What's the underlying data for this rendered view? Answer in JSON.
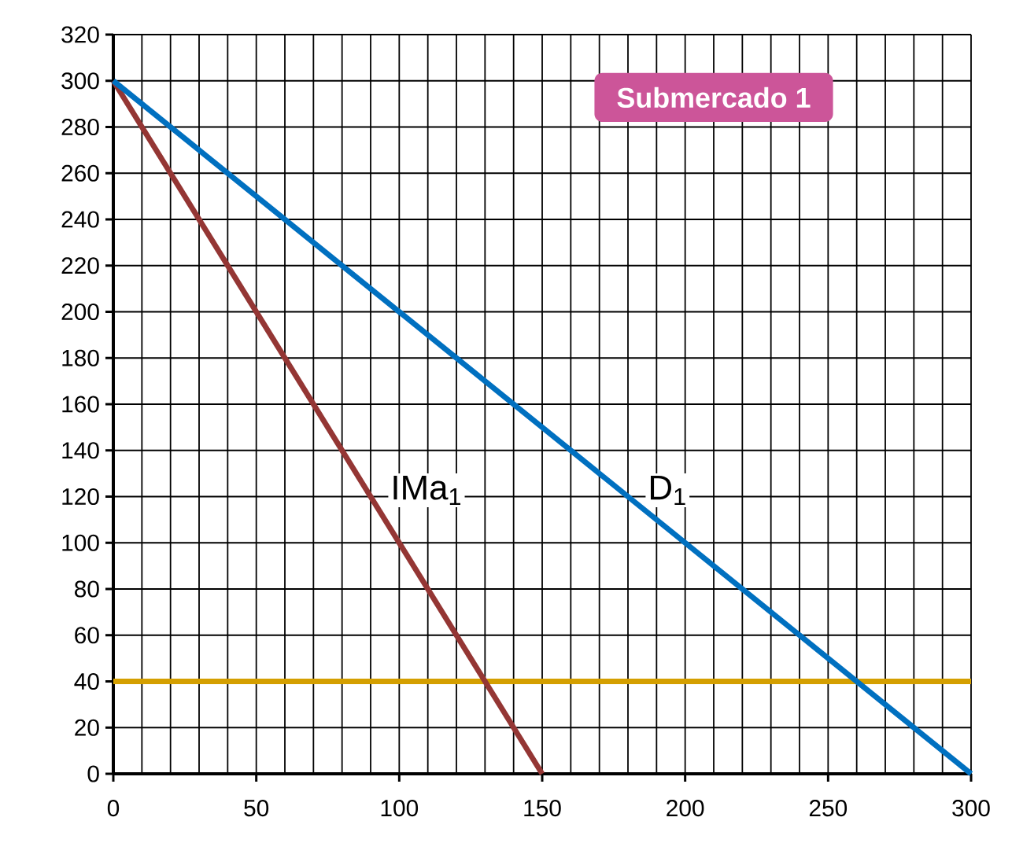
{
  "chart_data": {
    "type": "line",
    "title": "Submercado 1",
    "series": [
      {
        "name": "IMa$_{1}$",
        "color": "#943634",
        "x": [
          0,
          150
        ],
        "values": [
          300,
          0
        ]
      },
      {
        "name": "D$_{1}$",
        "color": "#0070c0",
        "x": [
          0,
          300
        ],
        "values": [
          300,
          0
        ]
      }
    ],
    "xlim": [
      0,
      300
    ],
    "ylim": [
      0,
      320
    ],
    "xticks": [
      0,
      50,
      100,
      150,
      200,
      250,
      300
    ],
    "yticks": [
      0,
      20,
      40,
      60,
      80,
      100,
      120,
      140,
      160,
      180,
      200,
      220,
      240,
      260,
      280,
      300,
      320
    ],
    "ref_lines": [
      {
        "axis": "y",
        "value": 40,
        "color": "#d49f00"
      }
    ],
    "grid": true,
    "legend": false,
    "marker": "none",
    "line_style": "solid"
  }
}
